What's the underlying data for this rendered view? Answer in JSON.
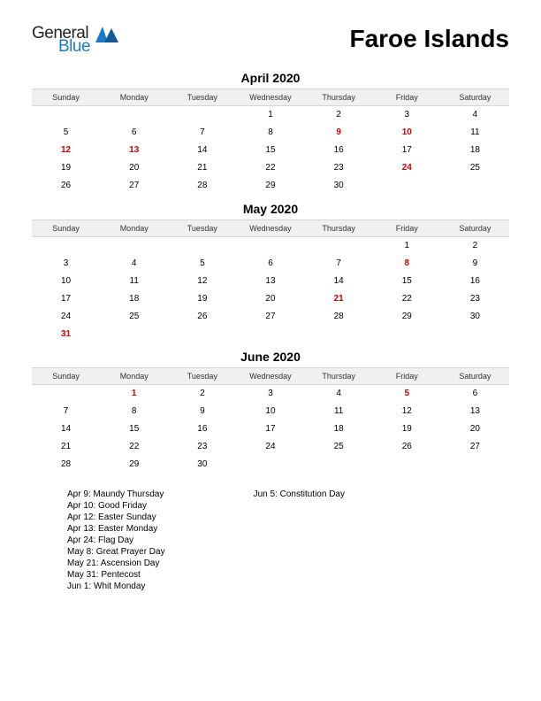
{
  "logo": {
    "word1": "General",
    "word2": "Blue",
    "word1_color": "#222222",
    "word2_color": "#1a7bc4",
    "icon_color": "#1a7bc4"
  },
  "title": "Faroe Islands",
  "day_headers": [
    "Sunday",
    "Monday",
    "Tuesday",
    "Wednesday",
    "Thursday",
    "Friday",
    "Saturday"
  ],
  "header_bg": "#f0f0f0",
  "holiday_color": "#d20000",
  "months": [
    {
      "title": "April 2020",
      "weeks": [
        [
          null,
          null,
          null,
          {
            "d": 1
          },
          {
            "d": 2
          },
          {
            "d": 3
          },
          {
            "d": 4
          }
        ],
        [
          {
            "d": 5
          },
          {
            "d": 6
          },
          {
            "d": 7
          },
          {
            "d": 8
          },
          {
            "d": 9,
            "h": true
          },
          {
            "d": 10,
            "h": true
          },
          {
            "d": 11
          }
        ],
        [
          {
            "d": 12,
            "h": true
          },
          {
            "d": 13,
            "h": true
          },
          {
            "d": 14
          },
          {
            "d": 15
          },
          {
            "d": 16
          },
          {
            "d": 17
          },
          {
            "d": 18
          }
        ],
        [
          {
            "d": 19
          },
          {
            "d": 20
          },
          {
            "d": 21
          },
          {
            "d": 22
          },
          {
            "d": 23
          },
          {
            "d": 24,
            "h": true
          },
          {
            "d": 25
          }
        ],
        [
          {
            "d": 26
          },
          {
            "d": 27
          },
          {
            "d": 28
          },
          {
            "d": 29
          },
          {
            "d": 30
          },
          null,
          null
        ]
      ]
    },
    {
      "title": "May 2020",
      "weeks": [
        [
          null,
          null,
          null,
          null,
          null,
          {
            "d": 1
          },
          {
            "d": 2
          }
        ],
        [
          {
            "d": 3
          },
          {
            "d": 4
          },
          {
            "d": 5
          },
          {
            "d": 6
          },
          {
            "d": 7
          },
          {
            "d": 8,
            "h": true
          },
          {
            "d": 9
          }
        ],
        [
          {
            "d": 10
          },
          {
            "d": 11
          },
          {
            "d": 12
          },
          {
            "d": 13
          },
          {
            "d": 14
          },
          {
            "d": 15
          },
          {
            "d": 16
          }
        ],
        [
          {
            "d": 17
          },
          {
            "d": 18
          },
          {
            "d": 19
          },
          {
            "d": 20
          },
          {
            "d": 21,
            "h": true
          },
          {
            "d": 22
          },
          {
            "d": 23
          }
        ],
        [
          {
            "d": 24
          },
          {
            "d": 25
          },
          {
            "d": 26
          },
          {
            "d": 27
          },
          {
            "d": 28
          },
          {
            "d": 29
          },
          {
            "d": 30
          }
        ],
        [
          {
            "d": 31,
            "h": true
          },
          null,
          null,
          null,
          null,
          null,
          null
        ]
      ]
    },
    {
      "title": "June 2020",
      "weeks": [
        [
          null,
          {
            "d": 1,
            "h": true
          },
          {
            "d": 2
          },
          {
            "d": 3
          },
          {
            "d": 4
          },
          {
            "d": 5,
            "h": true
          },
          {
            "d": 6
          }
        ],
        [
          {
            "d": 7
          },
          {
            "d": 8
          },
          {
            "d": 9
          },
          {
            "d": 10
          },
          {
            "d": 11
          },
          {
            "d": 12
          },
          {
            "d": 13
          }
        ],
        [
          {
            "d": 14
          },
          {
            "d": 15
          },
          {
            "d": 16
          },
          {
            "d": 17
          },
          {
            "d": 18
          },
          {
            "d": 19
          },
          {
            "d": 20
          }
        ],
        [
          {
            "d": 21
          },
          {
            "d": 22
          },
          {
            "d": 23
          },
          {
            "d": 24
          },
          {
            "d": 25
          },
          {
            "d": 26
          },
          {
            "d": 27
          }
        ],
        [
          {
            "d": 28
          },
          {
            "d": 29
          },
          {
            "d": 30
          },
          null,
          null,
          null,
          null
        ]
      ]
    }
  ],
  "holiday_columns": [
    [
      "Apr 9: Maundy Thursday",
      "Apr 10: Good Friday",
      "Apr 12: Easter Sunday",
      "Apr 13: Easter Monday",
      "Apr 24: Flag Day",
      "May 8: Great Prayer Day",
      "May 21: Ascension Day",
      "May 31: Pentecost",
      "Jun 1: Whit Monday"
    ],
    [
      "Jun 5: Constitution Day"
    ]
  ]
}
